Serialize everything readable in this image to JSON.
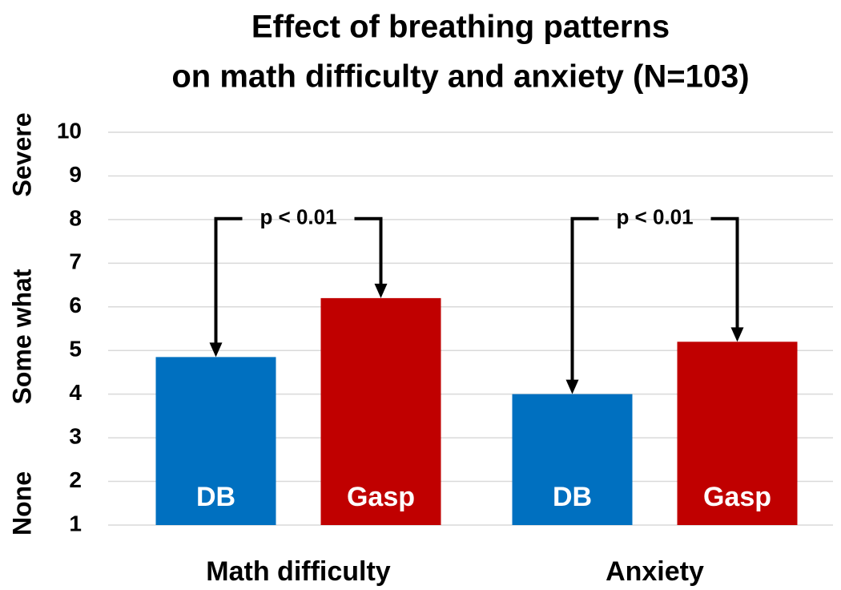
{
  "chart_data": {
    "type": "bar",
    "title": [
      "Effect of breathing patterns",
      "on math difficulty and anxiety (N=103)"
    ],
    "categories": [
      "Math difficulty",
      "Anxiety"
    ],
    "series": [
      {
        "name": "DB",
        "color": "#0070c0",
        "values": [
          4.85,
          4.0
        ]
      },
      {
        "name": "Gasp",
        "color": "#c00000",
        "values": [
          6.2,
          5.2
        ]
      }
    ],
    "ylim": [
      1,
      10
    ],
    "yticks": [
      1,
      2,
      3,
      4,
      5,
      6,
      7,
      8,
      9,
      10
    ],
    "grid": true,
    "y_bands": [
      "None",
      "Some what",
      "Severe"
    ],
    "annotations": [
      "p < 0.01",
      "p < 0.01"
    ]
  }
}
